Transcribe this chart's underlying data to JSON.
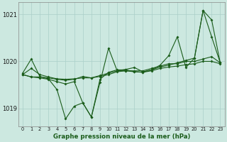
{
  "x": [
    0,
    1,
    2,
    3,
    4,
    5,
    6,
    7,
    8,
    9,
    10,
    11,
    12,
    13,
    14,
    15,
    16,
    17,
    18,
    19,
    20,
    21,
    22,
    23
  ],
  "line1": [
    1019.72,
    1019.85,
    1019.72,
    1019.67,
    1019.63,
    1019.62,
    1019.63,
    1019.65,
    1019.65,
    1019.68,
    1019.72,
    1019.78,
    1019.8,
    1019.78,
    1019.77,
    1019.8,
    1019.85,
    1019.88,
    1019.9,
    1019.93,
    1019.95,
    1020.0,
    1020.0,
    1019.95
  ],
  "line2": [
    1019.75,
    1020.05,
    1019.68,
    1019.63,
    1019.4,
    1018.78,
    1019.05,
    1019.12,
    1018.82,
    1019.55,
    1020.28,
    1019.8,
    1019.83,
    1019.87,
    1019.78,
    1019.82,
    1019.88,
    1019.92,
    1019.97,
    1020.02,
    1020.07,
    1021.08,
    1020.52,
    1019.97
  ],
  "line3": [
    1019.72,
    1019.67,
    1019.67,
    1019.65,
    1019.62,
    1019.6,
    1019.62,
    1019.68,
    1019.65,
    1019.7,
    1019.75,
    1019.8,
    1019.8,
    1019.8,
    1019.8,
    1019.85,
    1019.9,
    1019.95,
    1019.95,
    1020.0,
    1020.0,
    1020.05,
    1020.1,
    1019.97
  ],
  "line4": [
    1019.72,
    1019.67,
    1019.65,
    1019.62,
    1019.57,
    1019.52,
    1019.57,
    1019.12,
    1018.82,
    1019.62,
    1019.77,
    1019.82,
    1019.82,
    1019.78,
    1019.77,
    1019.82,
    1019.92,
    1020.12,
    1020.52,
    1019.87,
    1020.07,
    1021.08,
    1020.88,
    1019.97
  ],
  "bg_color": "#cce8e0",
  "line_color": "#1a5c1a",
  "grid_color": "#aacfc8",
  "title": "Graphe pression niveau de la mer (hPa)",
  "ylim_min": 1018.62,
  "ylim_max": 1021.25,
  "yticks": [
    1019,
    1020,
    1021
  ],
  "xlim_min": -0.5,
  "xlim_max": 23.5
}
